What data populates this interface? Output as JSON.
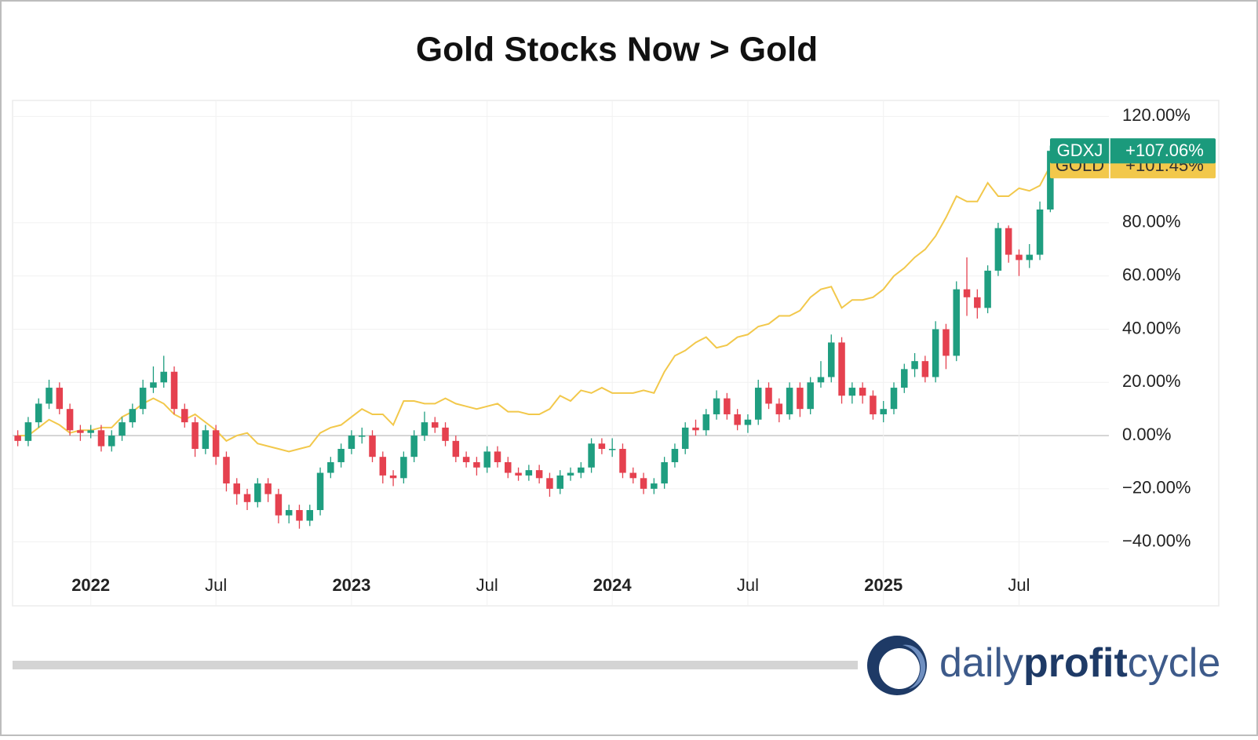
{
  "chart_data": {
    "type": "candlestick",
    "title": "Gold Stocks Now > Gold",
    "categories": [
      null,
      null,
      null,
      null,
      null,
      null,
      null,
      "2022",
      null,
      null,
      null,
      null,
      null,
      null,
      null,
      null,
      null,
      null,
      null,
      "Jul",
      null,
      null,
      null,
      null,
      null,
      null,
      null,
      null,
      null,
      null,
      null,
      null,
      "2023",
      null,
      null,
      null,
      null,
      null,
      null,
      null,
      null,
      null,
      null,
      null,
      null,
      "Jul",
      null,
      null,
      null,
      null,
      null,
      null,
      null,
      null,
      null,
      null,
      null,
      "2024",
      null,
      null,
      null,
      null,
      null,
      null,
      null,
      null,
      null,
      null,
      null,
      null,
      "Jul",
      null,
      null,
      null,
      null,
      null,
      null,
      null,
      null,
      null,
      null,
      null,
      null,
      "2025",
      null,
      null,
      null,
      null,
      null,
      null,
      null,
      null,
      null,
      null,
      null,
      null,
      "Jul",
      null,
      null,
      null
    ],
    "ylim": [
      -64,
      126
    ],
    "yticks": [
      {
        "value": 120,
        "label": "120.00%"
      },
      {
        "value": 80,
        "label": "80.00%"
      },
      {
        "value": 60,
        "label": "60.00%"
      },
      {
        "value": 40,
        "label": "40.00%"
      },
      {
        "value": 20,
        "label": "20.00%"
      },
      {
        "value": 0,
        "label": "0.00%"
      },
      {
        "value": -20,
        "label": "−20.00%"
      },
      {
        "value": -40,
        "label": "−40.00%"
      }
    ],
    "grid": true,
    "series": [
      {
        "name": "GOLD",
        "type": "line",
        "color": "#f2c84b",
        "values": [
          0,
          0,
          3,
          6,
          4,
          1,
          2,
          2,
          3,
          3,
          7,
          9,
          12,
          14,
          12,
          8,
          6,
          8,
          5,
          2,
          -2,
          0,
          1,
          -3,
          -4,
          -5,
          -6,
          -5,
          -4,
          1,
          3,
          4,
          7,
          10,
          8,
          8,
          4,
          13,
          13,
          12,
          12,
          14,
          12,
          11,
          10,
          11,
          12,
          9,
          9,
          8,
          8,
          10,
          15,
          13,
          17,
          16,
          18,
          16,
          16,
          16,
          17,
          16,
          24,
          30,
          32,
          35,
          37,
          33,
          34,
          37,
          38,
          41,
          42,
          45,
          45,
          47,
          52,
          55,
          56,
          48,
          51,
          51,
          52,
          55,
          60,
          63,
          67,
          70,
          75,
          82,
          90,
          88,
          88,
          95,
          90,
          90,
          93,
          92,
          94,
          101.45
        ],
        "value_labels": [
          null,
          null,
          null,
          null,
          null,
          null,
          null,
          null,
          null,
          null,
          null,
          null,
          null,
          null,
          null,
          null,
          null,
          null,
          null,
          null,
          null,
          null,
          null,
          null,
          null,
          null,
          null,
          null,
          null,
          null,
          null,
          null,
          null,
          null,
          null,
          null,
          null,
          null,
          null,
          null,
          null,
          null,
          null,
          null,
          null,
          null,
          null,
          null,
          null,
          null,
          null,
          null,
          null,
          null,
          null,
          null,
          null,
          null,
          null,
          null,
          null,
          null,
          null,
          null,
          null,
          null,
          null,
          null,
          null,
          null,
          null,
          null,
          null,
          null,
          null,
          null,
          null,
          null,
          null,
          null,
          null,
          null,
          null,
          null,
          null,
          null,
          null,
          null,
          null,
          null,
          null,
          null,
          null,
          null,
          null,
          null,
          null,
          null,
          null,
          "+101.45%"
        ]
      },
      {
        "name": "GDXJ",
        "type": "candlestick",
        "color": "#1b9a7c",
        "up_color": "#1f9e80",
        "down_color": "#e5414f",
        "open": [
          0,
          -2,
          5,
          12,
          18,
          10,
          2,
          1,
          2,
          -4,
          0,
          5,
          10,
          18,
          20,
          24,
          10,
          5,
          -5,
          2,
          -8,
          -18,
          -22,
          -25,
          -18,
          -22,
          -30,
          -28,
          -32,
          -28,
          -14,
          -10,
          -5,
          0,
          0,
          -8,
          -15,
          -16,
          -8,
          0,
          5,
          3,
          -2,
          -8,
          -10,
          -12,
          -6,
          -10,
          -14,
          -15,
          -13,
          -16,
          -20,
          -15,
          -14,
          -12,
          -3,
          -5,
          -5,
          -14,
          -16,
          -20,
          -18,
          -10,
          -5,
          3,
          2,
          8,
          14,
          8,
          4,
          6,
          18,
          12,
          8,
          18,
          10,
          20,
          22,
          35,
          15,
          18,
          15,
          8,
          10,
          18,
          25,
          28,
          22,
          40,
          30,
          55,
          52,
          48,
          62,
          78,
          68,
          66,
          68,
          85
        ],
        "high": [
          2,
          7,
          14,
          21,
          20,
          12,
          4,
          4,
          4,
          2,
          7,
          12,
          21,
          26,
          30,
          26,
          12,
          7,
          4,
          4,
          -6,
          -16,
          -20,
          -16,
          -16,
          -20,
          -26,
          -26,
          -26,
          -12,
          -8,
          -3,
          2,
          3,
          2,
          -6,
          -13,
          -6,
          2,
          9,
          7,
          5,
          0,
          -6,
          -8,
          -4,
          -4,
          -8,
          -12,
          -11,
          -11,
          -14,
          -13,
          -12,
          -10,
          -1,
          -1,
          -1,
          -3,
          -12,
          -14,
          -16,
          -8,
          -3,
          5,
          6,
          10,
          17,
          16,
          10,
          8,
          21,
          20,
          14,
          20,
          20,
          22,
          28,
          38,
          37,
          20,
          20,
          17,
          13,
          20,
          27,
          31,
          30,
          43,
          42,
          58,
          67,
          55,
          64,
          80,
          79,
          70,
          72,
          88,
          109
        ],
        "low": [
          -4,
          -4,
          3,
          10,
          8,
          0,
          -2,
          -1,
          -6,
          -6,
          -2,
          3,
          8,
          16,
          18,
          8,
          3,
          -8,
          -7,
          -11,
          -21,
          -26,
          -28,
          -27,
          -25,
          -33,
          -33,
          -35,
          -34,
          -30,
          -16,
          -12,
          -7,
          -3,
          -10,
          -18,
          -19,
          -18,
          -10,
          -2,
          1,
          -4,
          -10,
          -12,
          -15,
          -14,
          -12,
          -16,
          -17,
          -17,
          -18,
          -23,
          -22,
          -17,
          -16,
          -14,
          -7,
          -8,
          -16,
          -18,
          -22,
          -22,
          -20,
          -12,
          -7,
          0,
          0,
          6,
          6,
          2,
          1,
          4,
          10,
          5,
          6,
          7,
          8,
          18,
          20,
          12,
          12,
          12,
          6,
          5,
          8,
          16,
          22,
          20,
          20,
          25,
          28,
          45,
          44,
          46,
          60,
          65,
          60,
          63,
          66,
          84
        ],
        "close": [
          -2,
          5,
          12,
          18,
          10,
          2,
          1,
          2,
          -4,
          0,
          5,
          10,
          18,
          20,
          24,
          10,
          5,
          -5,
          2,
          -8,
          -18,
          -22,
          -25,
          -18,
          -22,
          -30,
          -28,
          -32,
          -28,
          -14,
          -10,
          -5,
          0,
          0,
          -8,
          -15,
          -16,
          -8,
          0,
          5,
          3,
          -2,
          -8,
          -10,
          -12,
          -6,
          -10,
          -14,
          -15,
          -13,
          -16,
          -20,
          -15,
          -14,
          -12,
          -3,
          -5,
          -5,
          -14,
          -16,
          -20,
          -18,
          -10,
          -5,
          3,
          2,
          8,
          14,
          8,
          4,
          6,
          18,
          12,
          8,
          18,
          10,
          20,
          22,
          35,
          15,
          18,
          15,
          8,
          10,
          18,
          25,
          28,
          22,
          40,
          30,
          55,
          52,
          48,
          62,
          78,
          68,
          66,
          68,
          85,
          107.06
        ],
        "value_labels": [
          null,
          null,
          null,
          null,
          null,
          null,
          null,
          null,
          null,
          null,
          null,
          null,
          null,
          null,
          null,
          null,
          null,
          null,
          null,
          null,
          null,
          null,
          null,
          null,
          null,
          null,
          null,
          null,
          null,
          null,
          null,
          null,
          null,
          null,
          null,
          null,
          null,
          null,
          null,
          null,
          null,
          null,
          null,
          null,
          null,
          null,
          null,
          null,
          null,
          null,
          null,
          null,
          null,
          null,
          null,
          null,
          null,
          null,
          null,
          null,
          null,
          null,
          null,
          null,
          null,
          null,
          null,
          null,
          null,
          null,
          null,
          null,
          null,
          null,
          null,
          null,
          null,
          null,
          null,
          null,
          null,
          null,
          null,
          null,
          null,
          null,
          null,
          null,
          null,
          null,
          null,
          null,
          null,
          null,
          null,
          null,
          null,
          null,
          null,
          "+107.06%"
        ]
      }
    ]
  },
  "brand": [
    "daily",
    "profit",
    "cycle"
  ]
}
